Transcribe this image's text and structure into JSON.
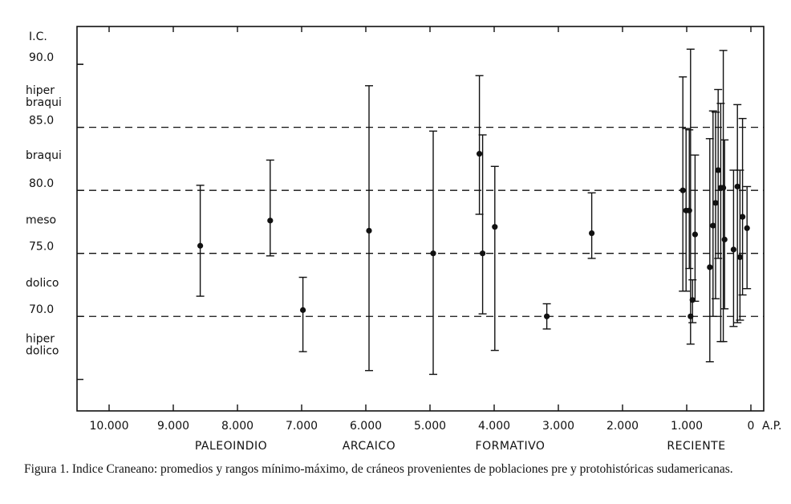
{
  "chart_data": {
    "type": "scatter",
    "title": "",
    "y_title": "I.C.",
    "x_unit_label": "A.P.",
    "x_reversed": true,
    "xlim": [
      10500,
      -200
    ],
    "ylim": [
      62.5,
      93.0
    ],
    "x_ticks": [
      {
        "value": 10000,
        "label": "10.000"
      },
      {
        "value": 9000,
        "label": "9.000"
      },
      {
        "value": 8000,
        "label": "8.000"
      },
      {
        "value": 7000,
        "label": "7.000"
      },
      {
        "value": 6000,
        "label": "6.000"
      },
      {
        "value": 5000,
        "label": "5.000"
      },
      {
        "value": 4000,
        "label": "4.000"
      },
      {
        "value": 3000,
        "label": "3.000"
      },
      {
        "value": 2000,
        "label": "2.000"
      },
      {
        "value": 1000,
        "label": "1.000"
      },
      {
        "value": 0,
        "label": "0"
      }
    ],
    "y_ticks": [
      {
        "value": 90,
        "label": "90.0"
      },
      {
        "value": 85,
        "label": "85.0"
      },
      {
        "value": 80,
        "label": "80.0"
      },
      {
        "value": 75,
        "label": "75.0"
      },
      {
        "value": 70,
        "label": "70.0"
      }
    ],
    "y_minor_ticks": [
      65,
      90
    ],
    "reference_lines": [
      85,
      80,
      75,
      70
    ],
    "class_labels": [
      {
        "lines": [
          "hiper",
          "braqui"
        ],
        "y_center": 87.5
      },
      {
        "lines": [
          "braqui"
        ],
        "y_center": 82.8
      },
      {
        "lines": [
          "meso"
        ],
        "y_center": 77.7
      },
      {
        "lines": [
          "dolico"
        ],
        "y_center": 72.7
      },
      {
        "lines": [
          "hiper",
          "dolico"
        ],
        "y_center": 67.8
      }
    ],
    "periods": [
      {
        "label": "PALEOINDIO",
        "x_center": 8100
      },
      {
        "label": "ARCAICO",
        "x_center": 5950
      },
      {
        "label": "FORMATIVO",
        "x_center": 3750
      },
      {
        "label": "RECIENTE",
        "x_center": 850
      }
    ],
    "points": [
      {
        "x": 8580,
        "mean": 75.6,
        "min": 71.6,
        "max": 80.4
      },
      {
        "x": 7490,
        "mean": 77.6,
        "min": 74.8,
        "max": 82.4
      },
      {
        "x": 6980,
        "mean": 70.5,
        "min": 67.2,
        "max": 73.1
      },
      {
        "x": 5950,
        "mean": 76.8,
        "min": 65.7,
        "max": 88.3
      },
      {
        "x": 4950,
        "mean": 75.0,
        "min": 65.4,
        "max": 84.7
      },
      {
        "x": 4230,
        "mean": 82.9,
        "min": 78.1,
        "max": 89.1
      },
      {
        "x": 4180,
        "mean": 75.0,
        "min": 70.2,
        "max": 84.4
      },
      {
        "x": 3990,
        "mean": 77.1,
        "min": 67.3,
        "max": 81.9
      },
      {
        "x": 3180,
        "mean": 70.0,
        "min": 69.0,
        "max": 71.0
      },
      {
        "x": 2480,
        "mean": 76.6,
        "min": 74.6,
        "max": 79.8
      },
      {
        "x": 1060,
        "mean": 80.0,
        "min": 72.0,
        "max": 89.0
      },
      {
        "x": 1010,
        "mean": 78.4,
        "min": 72.0,
        "max": 84.9
      },
      {
        "x": 960,
        "mean": 78.4,
        "min": 73.8,
        "max": 84.8
      },
      {
        "x": 940,
        "mean": 70.0,
        "min": 67.8,
        "max": 91.2
      },
      {
        "x": 910,
        "mean": 71.3,
        "min": 69.5,
        "max": 72.9
      },
      {
        "x": 870,
        "mean": 76.5,
        "min": 71.2,
        "max": 82.8
      },
      {
        "x": 640,
        "mean": 73.9,
        "min": 66.4,
        "max": 84.1
      },
      {
        "x": 590,
        "mean": 77.2,
        "min": 70.0,
        "max": 86.3
      },
      {
        "x": 550,
        "mean": 79.0,
        "min": 71.4,
        "max": 86.2
      },
      {
        "x": 510,
        "mean": 81.6,
        "min": 74.6,
        "max": 88.0
      },
      {
        "x": 470,
        "mean": 80.2,
        "min": 68.0,
        "max": 86.9
      },
      {
        "x": 430,
        "mean": 80.2,
        "min": 68.0,
        "max": 91.1
      },
      {
        "x": 410,
        "mean": 76.1,
        "min": 70.6,
        "max": 84.0
      },
      {
        "x": 270,
        "mean": 75.3,
        "min": 69.2,
        "max": 81.6
      },
      {
        "x": 210,
        "mean": 80.3,
        "min": 69.5,
        "max": 86.8
      },
      {
        "x": 170,
        "mean": 74.7,
        "min": 69.7,
        "max": 81.6
      },
      {
        "x": 130,
        "mean": 77.9,
        "min": 71.7,
        "max": 85.7
      },
      {
        "x": 60,
        "mean": 77.0,
        "min": 72.2,
        "max": 80.3
      }
    ]
  },
  "caption": "Figura 1. Indice Craneano: promedios y rangos mínimo-máximo, de cráneos provenientes de poblaciones pre y protohistóricas sudamericanas."
}
